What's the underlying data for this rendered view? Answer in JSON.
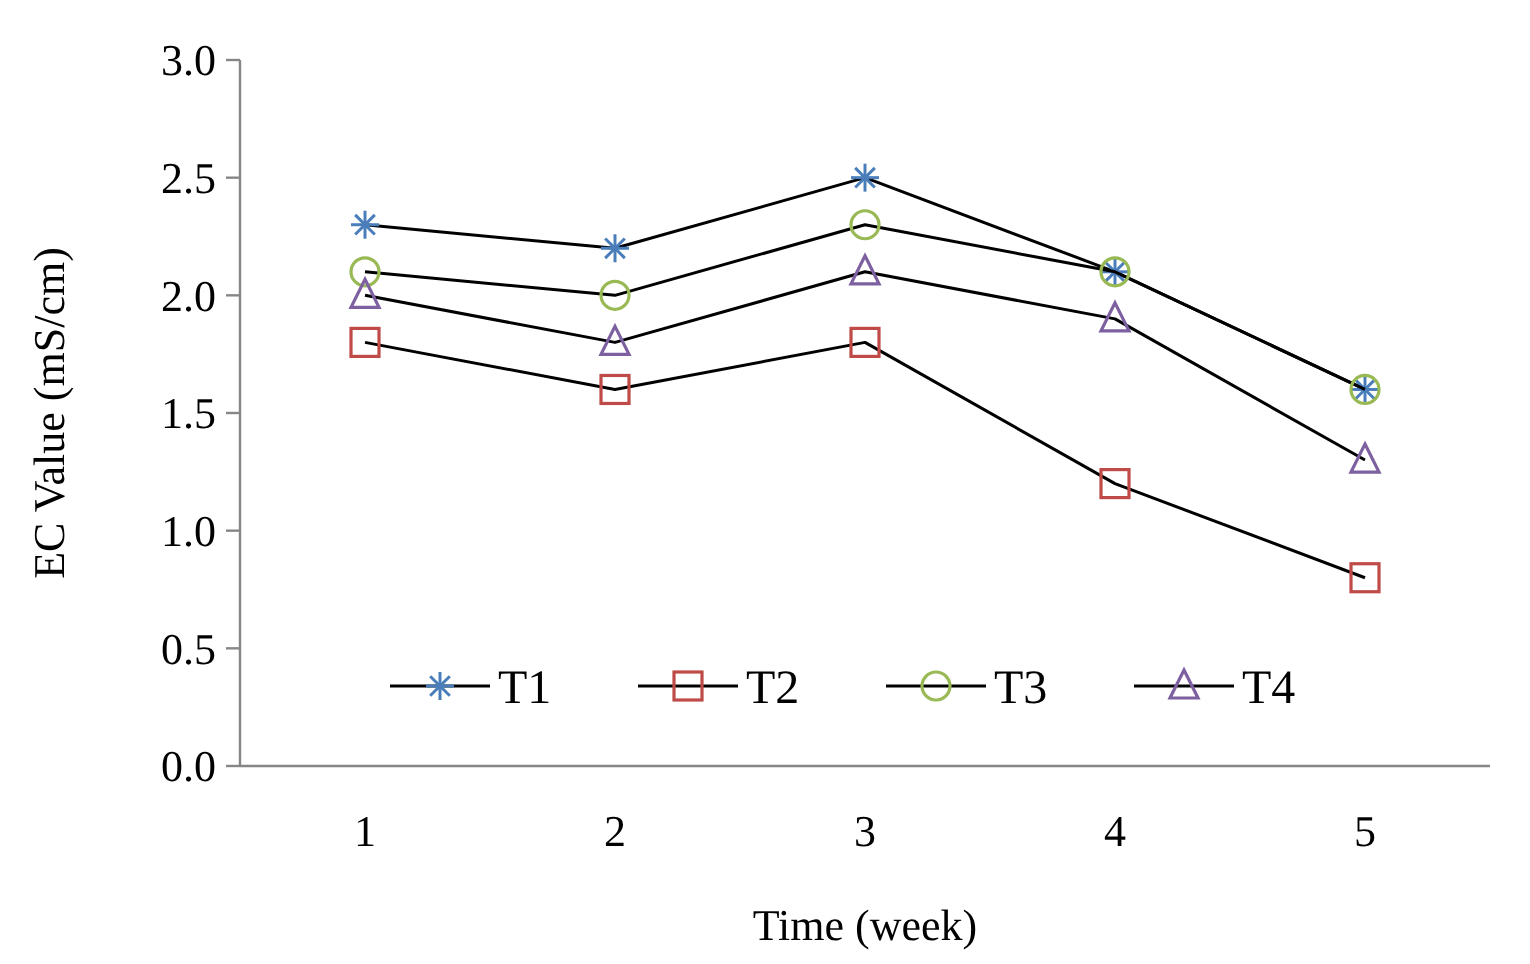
{
  "chart_data": {
    "type": "line",
    "xlabel": "Time (week)",
    "ylabel": "EC Value (mS/cm)",
    "categories": [
      "1",
      "2",
      "3",
      "4",
      "5"
    ],
    "ylim": [
      0,
      3
    ],
    "yticks": [
      {
        "value": 0,
        "label": "0.0"
      },
      {
        "value": 0.5,
        "label": "0.5"
      },
      {
        "value": 1,
        "label": "1.0"
      },
      {
        "value": 1.5,
        "label": "1.5"
      },
      {
        "value": 2,
        "label": "2.0"
      },
      {
        "value": 2.5,
        "label": "2.5"
      },
      {
        "value": 3,
        "label": "3.0"
      }
    ],
    "grid": false,
    "legend": "bottom",
    "line_style": "solid",
    "series": [
      {
        "name": "T1",
        "color": "#4a7ebb",
        "marker": "cross",
        "values": [
          2.3,
          2.2,
          2.5,
          2.1,
          1.6
        ]
      },
      {
        "name": "T2",
        "color": "#be4b48",
        "marker": "square",
        "values": [
          1.8,
          1.6,
          1.8,
          1.2,
          0.8
        ]
      },
      {
        "name": "T3",
        "color": "#98b954",
        "marker": "circle",
        "values": [
          2.1,
          2.0,
          2.3,
          2.1,
          1.6
        ]
      },
      {
        "name": "T4",
        "color": "#7d60a0",
        "marker": "triangle",
        "values": [
          2.0,
          1.8,
          2.1,
          1.9,
          1.3
        ]
      }
    ]
  }
}
